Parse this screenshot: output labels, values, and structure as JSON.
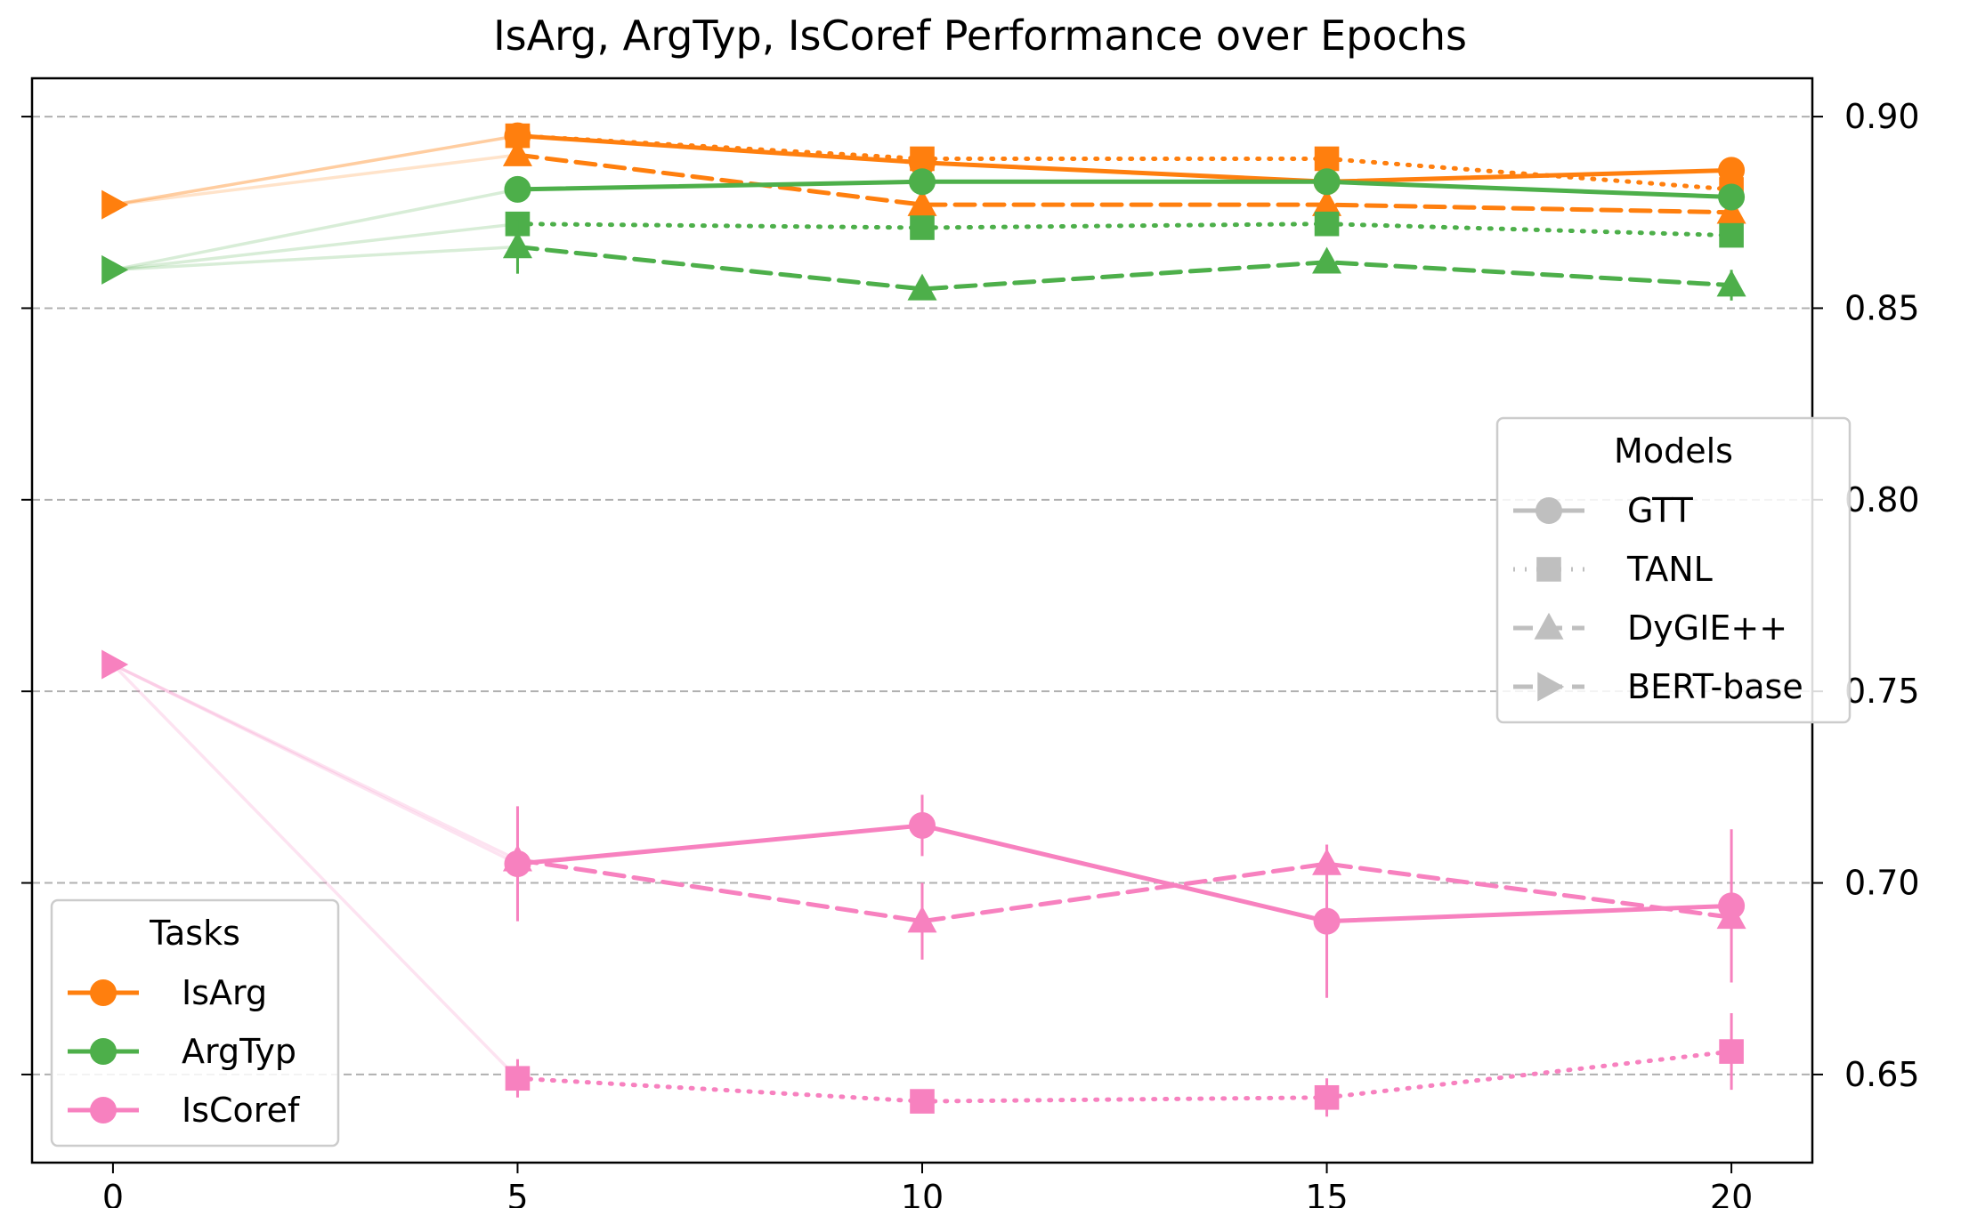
{
  "chart_data": {
    "type": "line",
    "title": "IsArg, ArgTyp, IsCoref Performance over Epochs",
    "xlabel": "",
    "ylabel": "",
    "xlim": [
      -1.0,
      21.0
    ],
    "ylim": [
      0.627,
      0.91
    ],
    "x_ticks": [
      0,
      5,
      10,
      15,
      20
    ],
    "y_ticks": [
      0.65,
      0.7,
      0.75,
      0.8,
      0.85,
      0.9
    ],
    "y_tick_labels": [
      "0.65",
      "0.70",
      "0.75",
      "0.80",
      "0.85",
      "0.90"
    ],
    "y_axis_side": "right",
    "grid": "y dashed",
    "task_colors": {
      "IsArg": "#ff7f0e",
      "ArgTyp": "#4daf4a",
      "IsCoref": "#f781bf"
    },
    "legend_tasks": {
      "title": "Tasks",
      "placement": "lower-left",
      "entries": [
        {
          "label": "IsArg",
          "color": "#ff7f0e"
        },
        {
          "label": "ArgTyp",
          "color": "#4daf4a"
        },
        {
          "label": "IsCoref",
          "color": "#f781bf"
        }
      ]
    },
    "legend_models": {
      "title": "Models",
      "placement": "center-right",
      "entries": [
        {
          "label": "GTT",
          "line": "solid",
          "marker": "circle"
        },
        {
          "label": "TANL",
          "line": "dotted",
          "marker": "square"
        },
        {
          "label": "DyGIE++",
          "line": "dashed",
          "marker": "triangle-up"
        },
        {
          "label": "BERT-base",
          "line": "dashed",
          "marker": "triangle-right"
        }
      ]
    },
    "baseline_epoch0": {
      "model": "BERT-base",
      "IsArg": 0.877,
      "ArgTyp": 0.86,
      "IsCoref": 0.757
    },
    "series": [
      {
        "task": "IsArg",
        "model": "GTT",
        "x": [
          5,
          10,
          15,
          20
        ],
        "y": [
          0.895,
          0.888,
          0.883,
          0.886
        ],
        "err": [
          0.001,
          0.001,
          0.001,
          0.001
        ]
      },
      {
        "task": "IsArg",
        "model": "TANL",
        "x": [
          5,
          10,
          15,
          20
        ],
        "y": [
          0.895,
          0.889,
          0.889,
          0.881
        ],
        "err": [
          0.001,
          0.001,
          0.002,
          0.001
        ]
      },
      {
        "task": "IsArg",
        "model": "DyGIE++",
        "x": [
          5,
          10,
          15,
          20
        ],
        "y": [
          0.89,
          0.877,
          0.877,
          0.875
        ],
        "err": [
          0.002,
          0.002,
          0.002,
          0.002
        ]
      },
      {
        "task": "ArgTyp",
        "model": "GTT",
        "x": [
          5,
          10,
          15,
          20
        ],
        "y": [
          0.881,
          0.883,
          0.883,
          0.879
        ],
        "err": [
          0.001,
          0.001,
          0.001,
          0.001
        ]
      },
      {
        "task": "ArgTyp",
        "model": "TANL",
        "x": [
          5,
          10,
          15,
          20
        ],
        "y": [
          0.872,
          0.871,
          0.872,
          0.869
        ],
        "err": [
          0.001,
          0.001,
          0.001,
          0.001
        ]
      },
      {
        "task": "ArgTyp",
        "model": "DyGIE++",
        "x": [
          5,
          10,
          15,
          20
        ],
        "y": [
          0.866,
          0.855,
          0.862,
          0.856
        ],
        "err": [
          0.007,
          0.001,
          0.001,
          0.004
        ]
      },
      {
        "task": "IsCoref",
        "model": "GTT",
        "x": [
          5,
          10,
          15,
          20
        ],
        "y": [
          0.705,
          0.715,
          0.69,
          0.694
        ],
        "err": [
          0.015,
          0.008,
          0.02,
          0.02
        ]
      },
      {
        "task": "IsCoref",
        "model": "TANL",
        "x": [
          5,
          10,
          15,
          20
        ],
        "y": [
          0.649,
          0.643,
          0.644,
          0.656
        ],
        "err": [
          0.005,
          0.002,
          0.005,
          0.01
        ]
      },
      {
        "task": "IsCoref",
        "model": "DyGIE++",
        "x": [
          5,
          10,
          15,
          20
        ],
        "y": [
          0.706,
          0.69,
          0.705,
          0.691
        ],
        "err": [
          0.002,
          0.01,
          0.005,
          0.002
        ]
      }
    ]
  }
}
